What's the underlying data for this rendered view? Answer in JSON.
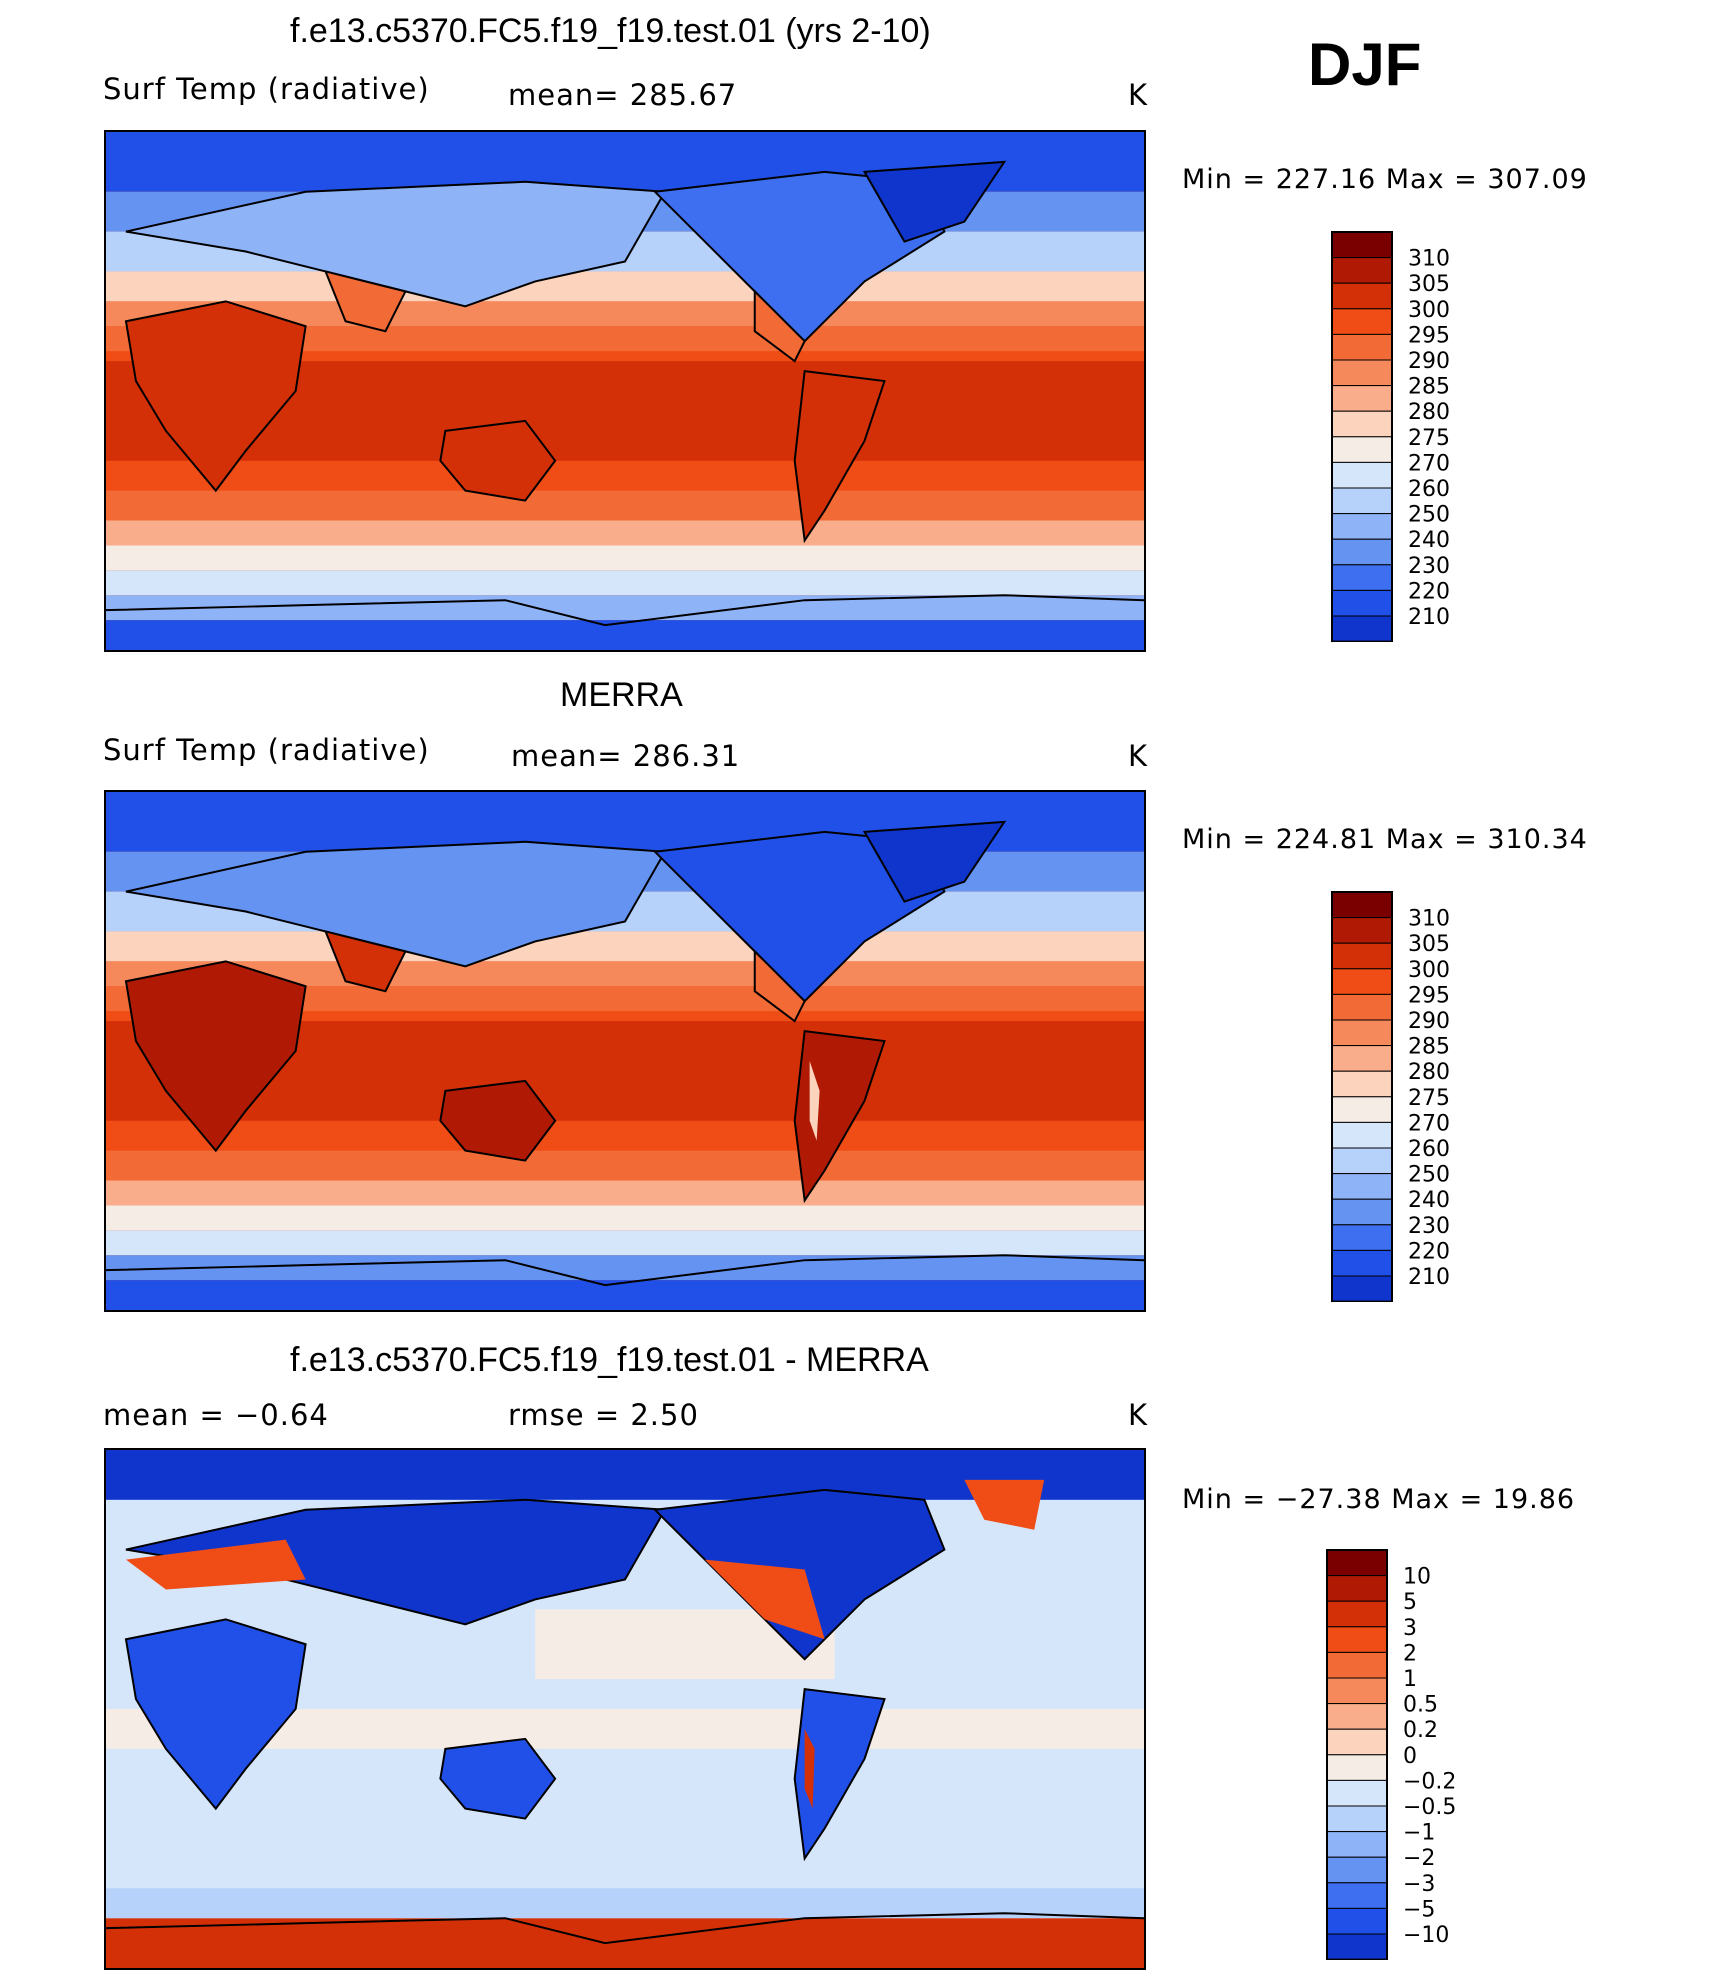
{
  "season": "DJF",
  "panels": [
    {
      "title": "f.e13.c5370.FC5.f19_f19.test.01 (yrs 2-10)",
      "left_label": "Surf Temp (radiative)",
      "center_label": "mean=  285.67",
      "units": "K",
      "minmax": "Min  =  227.16  Max  =  307.09",
      "colorbar_levels": [
        "310",
        "305",
        "300",
        "295",
        "290",
        "285",
        "280",
        "275",
        "270",
        "260",
        "250",
        "240",
        "230",
        "220",
        "210"
      ]
    },
    {
      "title": "MERRA",
      "left_label": "Surf Temp (radiative)",
      "center_label": "mean=  286.31",
      "units": "K",
      "minmax": "Min  =  224.81  Max  =  310.34",
      "colorbar_levels": [
        "310",
        "305",
        "300",
        "295",
        "290",
        "285",
        "280",
        "275",
        "270",
        "260",
        "250",
        "240",
        "230",
        "220",
        "210"
      ]
    },
    {
      "title": "f.e13.c5370.FC5.f19_f19.test.01 - MERRA",
      "left_label": "mean  =    −0.64",
      "center_label": "rmse  =     2.50",
      "units": "K",
      "minmax": "Min  =  −27.38  Max  =    19.86",
      "colorbar_levels": [
        "10",
        "5",
        "3",
        "2",
        "1",
        "0.5",
        "0.2",
        "0",
        "−0.2",
        "−0.5",
        "−1",
        "−2",
        "−3",
        "−5",
        "−10"
      ]
    }
  ],
  "colors": {
    "temp_scale": [
      "#7a0000",
      "#b01a05",
      "#d43008",
      "#f04c16",
      "#f26a35",
      "#f5895c",
      "#f9ad8b",
      "#fcd3bd",
      "#f5ece6",
      "#d6e6fa",
      "#b6d1fa",
      "#8fb3f7",
      "#6593f2",
      "#3d6ff0",
      "#2050e8",
      "#1035cc",
      "#0a22a8",
      "#061580"
    ],
    "diff_scale": [
      "#7a0000",
      "#b01a05",
      "#d43008",
      "#f04c16",
      "#f26a35",
      "#f5895c",
      "#f9ad8b",
      "#fcd3bd",
      "#f5ece6",
      "#d6e6fa",
      "#b6d1fa",
      "#8fb3f7",
      "#6593f2",
      "#3d6ff0",
      "#2050e8",
      "#1035cc",
      "#0a22a8",
      "#061580"
    ],
    "coastline": "#000000"
  }
}
